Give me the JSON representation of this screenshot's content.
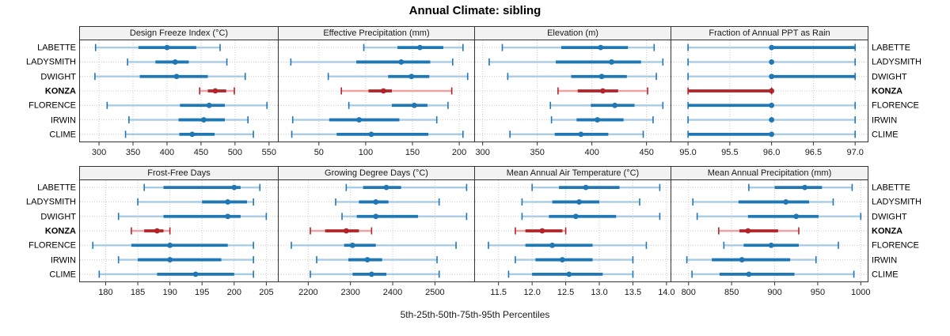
{
  "title": "Annual Climate: sibling",
  "caption": "5th-25th-50th-75th-95th Percentiles",
  "percentile_levels": [
    5,
    25,
    50,
    75,
    95
  ],
  "stations": [
    "LABETTE",
    "LADYSMITH",
    "DWIGHT",
    "KONZA",
    "FLORENCE",
    "IRWIN",
    "CLIME"
  ],
  "highlighted_station": "KONZA",
  "colors": {
    "series_dark": "#1f77b4",
    "series_light": "#a9cce5",
    "highlight_dark": "#b22428",
    "highlight_light": "#eba3a4",
    "grid": "#c9c9c9",
    "header_bg": "#f2f2f2",
    "panel_border": "#333333",
    "axis_text": "#1a1a1a"
  },
  "chart_data": [
    {
      "type": "dot-whisker",
      "id": "design-freeze-index",
      "title": "Design Freeze Index (°C)",
      "row": 0,
      "col": 0,
      "xlim": [
        272,
        563
      ],
      "ticks": [
        300,
        350,
        400,
        450,
        500,
        550
      ],
      "tick_labels": [
        "300",
        "350",
        "400",
        "450",
        "500",
        "550"
      ],
      "values": [
        [
          295,
          358,
          400,
          443,
          478
        ],
        [
          342,
          383,
          412,
          432,
          488
        ],
        [
          294,
          360,
          414,
          460,
          515
        ],
        [
          448,
          460,
          471,
          487,
          499
        ],
        [
          312,
          419,
          462,
          485,
          547
        ],
        [
          344,
          417,
          454,
          485,
          519
        ],
        [
          339,
          418,
          437,
          470,
          527
        ]
      ]
    },
    {
      "type": "dot-whisker",
      "id": "effective-precipitation",
      "title": "Effective Precipitation (mm)",
      "row": 0,
      "col": 1,
      "xlim": [
        7,
        216
      ],
      "ticks": [
        50,
        100,
        150,
        200
      ],
      "tick_labels": [
        "50",
        "100",
        "150",
        "200"
      ],
      "values": [
        [
          98,
          134,
          158,
          183,
          204
        ],
        [
          20,
          90,
          138,
          169,
          193
        ],
        [
          60,
          124,
          149,
          168,
          209
        ],
        [
          74,
          103,
          119,
          128,
          192
        ],
        [
          82,
          128,
          152,
          166,
          188
        ],
        [
          22,
          61,
          93,
          136,
          176
        ],
        [
          21,
          69,
          106,
          167,
          204
        ]
      ]
    },
    {
      "type": "dot-whisker",
      "id": "elevation",
      "title": "Elevation (m)",
      "row": 0,
      "col": 2,
      "xlim": [
        293,
        472
      ],
      "ticks": [
        300,
        350,
        400,
        450
      ],
      "tick_labels": [
        "300",
        "350",
        "400",
        "450"
      ],
      "values": [
        [
          318,
          372,
          408,
          433,
          457
        ],
        [
          306,
          367,
          418,
          445,
          465
        ],
        [
          323,
          381,
          409,
          432,
          459
        ],
        [
          369,
          387,
          410,
          424,
          451
        ],
        [
          362,
          399,
          421,
          439,
          465
        ],
        [
          363,
          386,
          405,
          429,
          456
        ],
        [
          325,
          366,
          390,
          415,
          447
        ]
      ]
    },
    {
      "type": "dot-whisker",
      "id": "fraction-annual-ppt-as-rain",
      "title": "Fraction of Annual PPT as Rain",
      "row": 0,
      "col": 3,
      "xlim": [
        94.8,
        97.15
      ],
      "ticks": [
        95.0,
        95.5,
        96.0,
        96.5,
        97.0
      ],
      "tick_labels": [
        "95.0",
        "95.5",
        "96.0",
        "96.5",
        "97.0"
      ],
      "values": [
        [
          95,
          96,
          96,
          97,
          97
        ],
        [
          95,
          96,
          96,
          96,
          97
        ],
        [
          95,
          96,
          96,
          97,
          97
        ],
        [
          95,
          95,
          96,
          96,
          96
        ],
        [
          95,
          95,
          96,
          96,
          97
        ],
        [
          95,
          96,
          96,
          96,
          97
        ],
        [
          95,
          95,
          96,
          96,
          97
        ]
      ]
    },
    {
      "type": "dot-whisker",
      "id": "frost-free-days",
      "title": "Frost-Free Days",
      "row": 1,
      "col": 0,
      "xlim": [
        176,
        206.8
      ],
      "ticks": [
        180,
        185,
        190,
        195,
        200,
        205
      ],
      "tick_labels": [
        "180",
        "185",
        "190",
        "195",
        "200",
        "205"
      ],
      "values": [
        [
          186,
          189,
          200,
          201,
          204
        ],
        [
          185,
          195,
          199,
          202,
          203
        ],
        [
          182,
          189,
          199,
          201,
          205
        ],
        [
          184,
          186,
          188,
          189,
          190
        ],
        [
          178,
          184,
          190,
          199,
          203
        ],
        [
          182,
          185,
          190,
          198,
          203
        ],
        [
          179,
          188,
          194,
          200,
          203
        ]
      ]
    },
    {
      "type": "dot-whisker",
      "id": "growing-degree-days",
      "title": "Growing Degree Days (°C)",
      "row": 1,
      "col": 1,
      "xlim": [
        2130,
        2593
      ],
      "ticks": [
        2200,
        2300,
        2400,
        2500
      ],
      "tick_labels": [
        "2200",
        "2300",
        "2400",
        "2500"
      ],
      "values": [
        [
          2290,
          2330,
          2385,
          2420,
          2575
        ],
        [
          2265,
          2320,
          2360,
          2390,
          2510
        ],
        [
          2280,
          2315,
          2360,
          2460,
          2575
        ],
        [
          2205,
          2240,
          2290,
          2320,
          2350
        ],
        [
          2160,
          2285,
          2305,
          2360,
          2550
        ],
        [
          2220,
          2295,
          2340,
          2375,
          2505
        ],
        [
          2205,
          2305,
          2350,
          2385,
          2510
        ]
      ]
    },
    {
      "type": "dot-whisker",
      "id": "mean-annual-air-temperature",
      "title": "Mean Annual Air Temperature (°C)",
      "row": 1,
      "col": 2,
      "xlim": [
        11.15,
        14.06
      ],
      "ticks": [
        11.5,
        12.0,
        12.5,
        13.0,
        13.5,
        14.0
      ],
      "tick_labels": [
        "11.5",
        "12.0",
        "12.5",
        "13.0",
        "13.5",
        "14.0"
      ],
      "values": [
        [
          12.0,
          12.4,
          12.8,
          13.3,
          13.9
        ],
        [
          11.85,
          12.3,
          12.7,
          13.0,
          13.6
        ],
        [
          11.85,
          12.25,
          12.65,
          13.25,
          13.9
        ],
        [
          11.75,
          11.9,
          12.15,
          12.45,
          12.5
        ],
        [
          11.35,
          11.9,
          12.3,
          12.9,
          13.7
        ],
        [
          11.75,
          12.05,
          12.45,
          12.9,
          13.5
        ],
        [
          11.65,
          12.0,
          12.55,
          13.05,
          13.5
        ]
      ]
    },
    {
      "type": "dot-whisker",
      "id": "mean-annual-precipitation",
      "title": "Mean Annual Precipitation (mm)",
      "row": 1,
      "col": 3,
      "xlim": [
        780,
        1008
      ],
      "ticks": [
        800,
        850,
        900,
        950,
        1000
      ],
      "tick_labels": [
        "800",
        "850",
        "900",
        "950",
        "1000"
      ],
      "values": [
        [
          870,
          900,
          935,
          955,
          990
        ],
        [
          805,
          858,
          913,
          940,
          968
        ],
        [
          810,
          869,
          925,
          951,
          1000
        ],
        [
          835,
          859,
          869,
          904,
          928
        ],
        [
          841,
          864,
          896,
          928,
          974
        ],
        [
          798,
          827,
          862,
          918,
          948
        ],
        [
          804,
          836,
          870,
          923,
          992
        ]
      ]
    }
  ]
}
